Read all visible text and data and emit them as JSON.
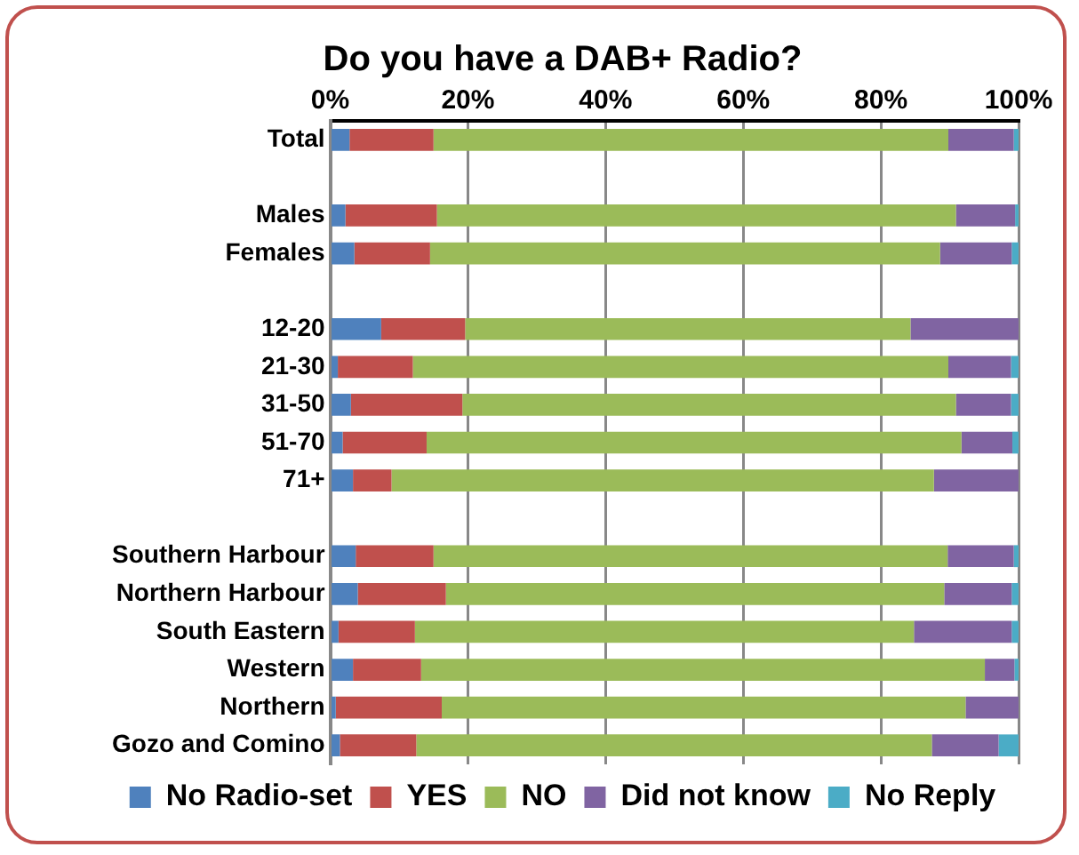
{
  "chart_data": {
    "type": "bar",
    "orientation": "horizontal",
    "stacked": true,
    "title": "Do you have a DAB+ Radio?",
    "categories": [
      "Total",
      null,
      "Males",
      "Females",
      null,
      "12-20",
      "21-30",
      "31-50",
      "51-70",
      "71+",
      null,
      "Southern Harbour",
      "Northern Harbour",
      "South Eastern",
      "Western",
      "Northern",
      "Gozo and Comino"
    ],
    "series": [
      {
        "name": "No Radio-set",
        "color": "#4f81bd",
        "values": [
          2.8,
          null,
          2.2,
          3.5,
          null,
          7.4,
          1.1,
          3.0,
          1.8,
          3.3,
          null,
          3.7,
          4.0,
          1.2,
          3.3,
          0.8,
          1.4
        ]
      },
      {
        "name": "YES",
        "color": "#c0504d",
        "values": [
          12.2,
          null,
          13.3,
          11.0,
          null,
          12.2,
          10.9,
          16.2,
          12.2,
          5.6,
          null,
          11.3,
          12.8,
          11.1,
          9.9,
          15.4,
          11.1
        ]
      },
      {
        "name": "NO",
        "color": "#9bbb59",
        "values": [
          74.8,
          null,
          75.4,
          74.1,
          null,
          64.7,
          77.8,
          71.7,
          77.7,
          78.8,
          null,
          74.7,
          72.4,
          72.5,
          81.9,
          76.1,
          74.9
        ]
      },
      {
        "name": "Did not know",
        "color": "#8064a2",
        "values": [
          9.5,
          null,
          8.6,
          10.4,
          null,
          15.7,
          9.1,
          8.0,
          7.4,
          12.3,
          null,
          9.6,
          9.8,
          14.2,
          4.3,
          7.7,
          9.7
        ]
      },
      {
        "name": "No Reply",
        "color": "#4bacc6",
        "values": [
          0.7,
          null,
          0.5,
          1.0,
          null,
          0.0,
          1.1,
          1.1,
          0.9,
          0.0,
          null,
          0.7,
          1.0,
          1.0,
          0.6,
          0.0,
          2.9
        ]
      }
    ],
    "xlim": [
      0,
      100
    ],
    "xticks": [
      {
        "value": 0,
        "label": "0%"
      },
      {
        "value": 20,
        "label": "20%"
      },
      {
        "value": 40,
        "label": "40%"
      },
      {
        "value": 60,
        "label": "60%"
      },
      {
        "value": 80,
        "label": "80%"
      },
      {
        "value": 100,
        "label": "100%"
      }
    ],
    "grid": "x",
    "legend": "bottom"
  }
}
